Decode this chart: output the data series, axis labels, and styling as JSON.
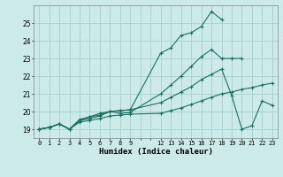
{
  "xlabel": "Humidex (Indice chaleur)",
  "bg_color": "#cceae8",
  "grid_color": "#aad4d0",
  "line_color": "#1a7060",
  "xlim": [
    -0.5,
    23.5
  ],
  "ylim": [
    18.5,
    26.0
  ],
  "yticks": [
    19,
    20,
    21,
    22,
    23,
    24,
    25
  ],
  "xtick_labels": [
    "0",
    "1",
    "2",
    "3",
    "4",
    "5",
    "6",
    "7",
    "8",
    "9",
    "",
    "",
    "12",
    "13",
    "14",
    "15",
    "16",
    "17",
    "18",
    "19",
    "20",
    "21",
    "22",
    "23"
  ],
  "xtick_positions": [
    0,
    1,
    2,
    3,
    4,
    5,
    6,
    7,
    8,
    9,
    10,
    11,
    12,
    13,
    14,
    15,
    16,
    17,
    18,
    19,
    20,
    21,
    22,
    23
  ],
  "series": [
    {
      "x": [
        0,
        1,
        2,
        3,
        4,
        5,
        6,
        7,
        8,
        9,
        12,
        13,
        14,
        15,
        16,
        17,
        18
      ],
      "y": [
        19.0,
        19.1,
        19.3,
        19.0,
        19.5,
        19.7,
        19.9,
        20.0,
        20.05,
        20.1,
        23.3,
        23.6,
        24.3,
        24.45,
        24.8,
        25.65,
        25.2
      ]
    },
    {
      "x": [
        0,
        1,
        2,
        3,
        4,
        5,
        6,
        7,
        8,
        9,
        12,
        13,
        14,
        15,
        16,
        17,
        18,
        19,
        20
      ],
      "y": [
        19.0,
        19.1,
        19.3,
        19.0,
        19.55,
        19.7,
        19.8,
        20.0,
        19.9,
        19.95,
        21.0,
        21.5,
        22.0,
        22.55,
        23.1,
        23.5,
        23.0,
        23.0,
        23.0
      ]
    },
    {
      "x": [
        0,
        1,
        2,
        3,
        4,
        5,
        6,
        7,
        8,
        9,
        12,
        13,
        14,
        15,
        16,
        17,
        18,
        19,
        20,
        21,
        22,
        23
      ],
      "y": [
        19.0,
        19.1,
        19.3,
        19.0,
        19.5,
        19.6,
        19.75,
        20.0,
        20.05,
        20.1,
        20.5,
        20.8,
        21.1,
        21.4,
        21.8,
        22.1,
        22.4,
        20.9,
        19.0,
        19.2,
        20.6,
        20.35
      ]
    },
    {
      "x": [
        0,
        1,
        2,
        3,
        4,
        5,
        6,
        7,
        8,
        9,
        12,
        13,
        14,
        15,
        16,
        17,
        18,
        19,
        20,
        21,
        22,
        23
      ],
      "y": [
        19.0,
        19.1,
        19.3,
        19.0,
        19.4,
        19.5,
        19.6,
        19.75,
        19.8,
        19.85,
        19.9,
        20.05,
        20.2,
        20.4,
        20.6,
        20.8,
        21.0,
        21.1,
        21.25,
        21.35,
        21.5,
        21.6
      ]
    }
  ]
}
